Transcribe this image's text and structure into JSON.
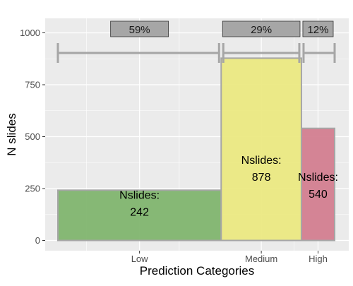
{
  "chart_data": {
    "type": "bar",
    "xlabel": "Prediction Categories",
    "ylabel": "N slides",
    "ylim": [
      0,
      1050
    ],
    "y_ticks": [
      0,
      250,
      500,
      750,
      1000
    ],
    "grid": true,
    "categories": [
      "Low",
      "Medium",
      "High"
    ],
    "values": [
      242,
      878,
      540
    ],
    "bar_label_prefix": "Nslides:",
    "bar_width_share": [
      0.59,
      0.29,
      0.12
    ],
    "percent_labels": [
      "59%",
      "29%",
      "12%"
    ],
    "colors": [
      "#7db36a",
      "#eae87e",
      "#d17b8d"
    ],
    "bar_outline": "#a6a6a6",
    "panel_bg": "#ebebeb",
    "gridline_color": "#ffffff",
    "percent_box_color": "#a6a6a6"
  }
}
